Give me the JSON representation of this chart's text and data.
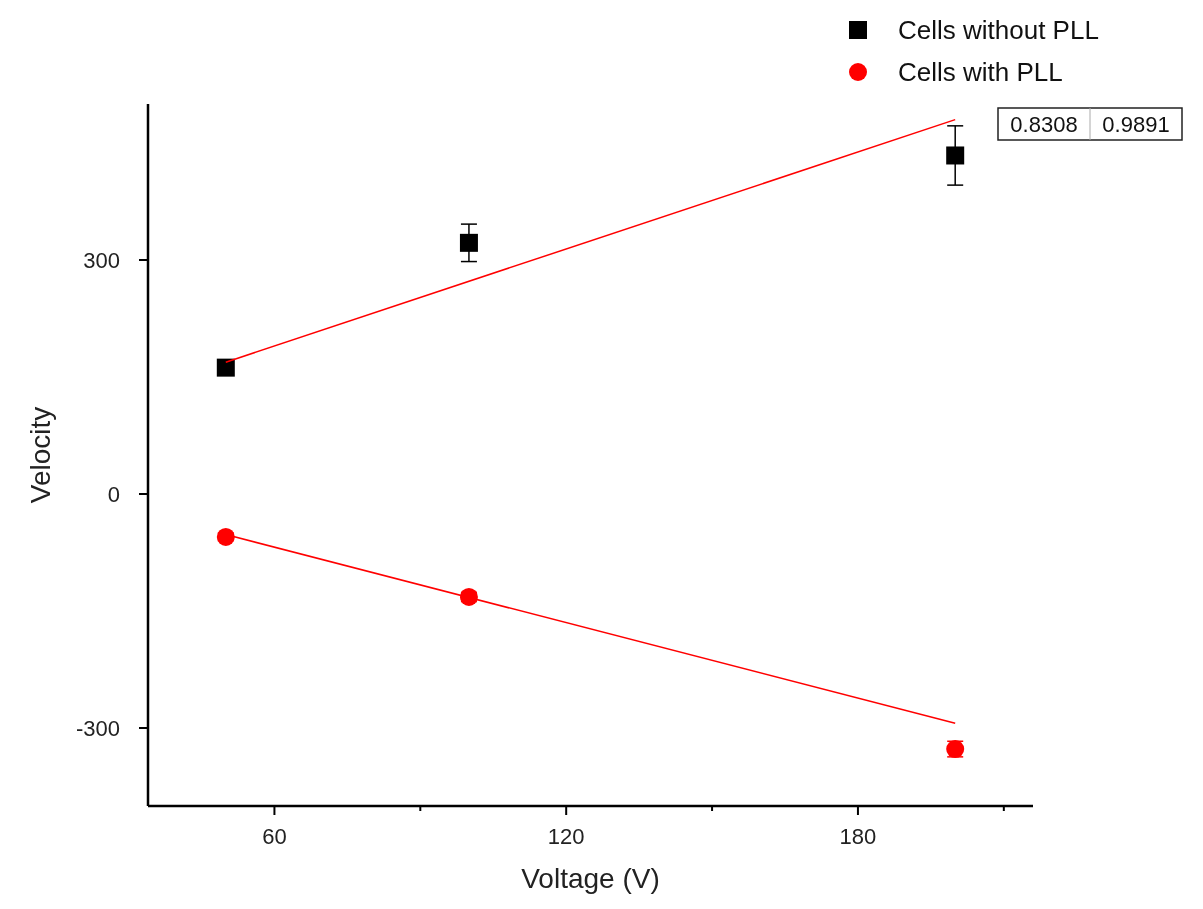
{
  "chart_data": {
    "type": "scatter",
    "xlabel": "Voltage (V)",
    "ylabel": "Velocity",
    "xlim": [
      34,
      216
    ],
    "ylim": [
      -400,
      500
    ],
    "xticks": [
      60,
      {
        "value": 90,
        "label": null
      },
      120,
      {
        "value": 150,
        "label": null
      },
      180,
      {
        "value": 210,
        "label": null
      }
    ],
    "yticks": [
      -300,
      0,
      300
    ],
    "grid": false,
    "legend": "top right",
    "annotations": [
      "0.8308",
      "0.9891"
    ],
    "series": [
      {
        "name": "Cells without PLL",
        "marker": "square",
        "color": "#000000",
        "x": [
          50,
          100,
          200
        ],
        "values": [
          162,
          322,
          434
        ],
        "errors": [
          5,
          24,
          38
        ]
      },
      {
        "name": "Cells with PLL",
        "marker": "circle",
        "color": "#ff0000",
        "x": [
          50,
          100,
          200
        ],
        "values": [
          -55,
          -132,
          -327
        ],
        "errors": [
          5,
          6,
          10
        ]
      },
      {
        "type": "line",
        "marker": "none",
        "color": "#ff0000",
        "x": [
          50,
          200
        ],
        "values": [
          169,
          480
        ]
      },
      {
        "type": "line",
        "marker": "none",
        "color": "#ff0000",
        "x": [
          50,
          200
        ],
        "values": [
          -52,
          -294
        ]
      }
    ]
  }
}
